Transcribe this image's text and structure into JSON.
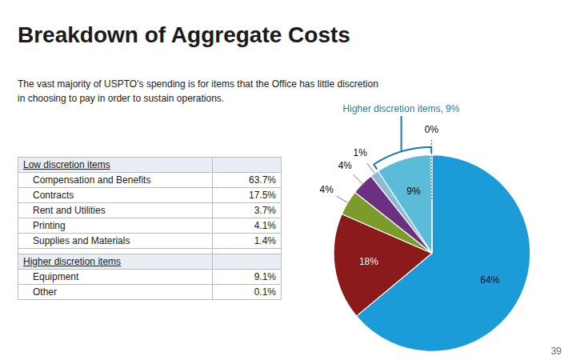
{
  "chart_data": {
    "type": "pie",
    "title": "Breakdown of Aggregate Costs",
    "subtitle": "The vast majority of USPTO’s spending is for items that the Office has little discretion\nin choosing to pay in order to sustain operations.",
    "categories": [
      "Compensation and Benefits",
      "Contracts",
      "Printing",
      "Rent and Utilities",
      "Supplies and Materials",
      "Equipment",
      "Other"
    ],
    "values": [
      63.7,
      17.5,
      4.1,
      3.7,
      1.4,
      9.1,
      0.1
    ],
    "value_labels": [
      "64%",
      "18%",
      "4%",
      "4%",
      "1%",
      "9%",
      "0%"
    ],
    "colors": [
      "#1B9CD8",
      "#8B1A1A",
      "#7B9B2A",
      "#6B3080",
      "#8FBBD9",
      "#5BBCD9",
      "#AAAAAA"
    ],
    "data_labels": true,
    "annotations": [
      {
        "text": "Higher discretion items, 9%",
        "target": "Equipment",
        "color": "#1B7AAF"
      }
    ],
    "table": [
      {
        "header": "Low discretion items",
        "categories": [
          "Compensation and Benefits",
          "Contracts",
          "Rent and Utilities",
          "Printing",
          "Supplies and Materials"
        ],
        "values": [
          63.7,
          17.5,
          3.7,
          4.1,
          1.4
        ],
        "value_labels": [
          "63.7%",
          "17.5%",
          "3.7%",
          "4.1%",
          "1.4%"
        ]
      },
      {
        "header": "Higher discretion items",
        "categories": [
          "Equipment",
          "Other"
        ],
        "values": [
          9.1,
          0.1
        ],
        "value_labels": [
          "9.1%",
          "0.1%"
        ]
      }
    ],
    "page_number": "39"
  }
}
